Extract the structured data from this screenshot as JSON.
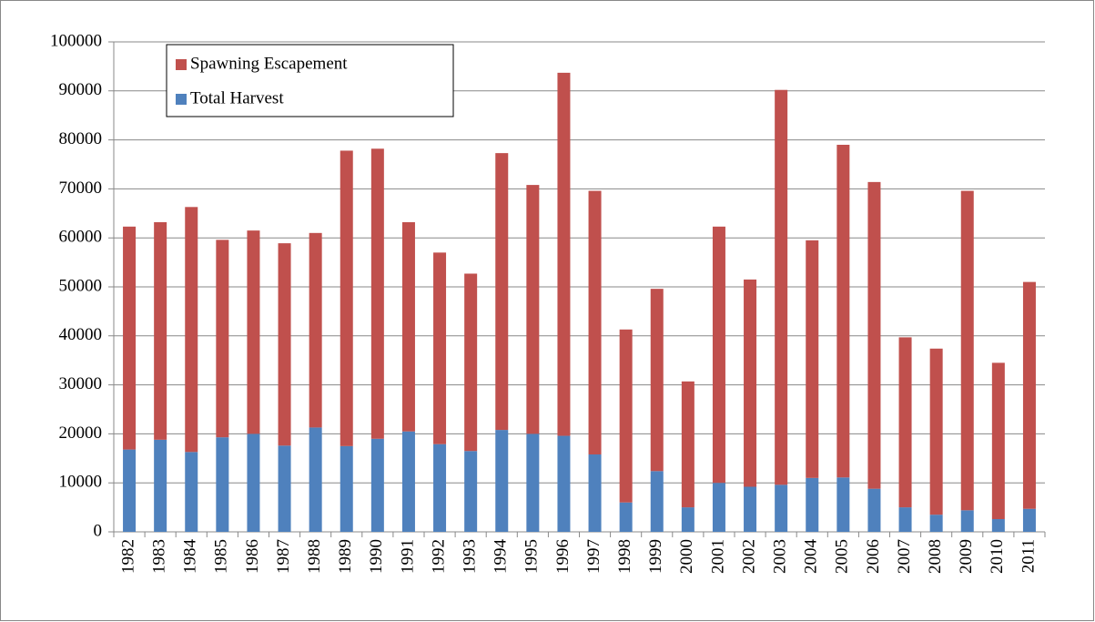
{
  "chart_data": {
    "type": "stacked_bar",
    "categories": [
      "1982",
      "1983",
      "1984",
      "1985",
      "1986",
      "1987",
      "1988",
      "1989",
      "1990",
      "1991",
      "1992",
      "1993",
      "1994",
      "1995",
      "1996",
      "1997",
      "1998",
      "1999",
      "2000",
      "2001",
      "2002",
      "2003",
      "2004",
      "2005",
      "2006",
      "2007",
      "2008",
      "2009",
      "2010",
      "2011"
    ],
    "series": [
      {
        "name": "Total Harvest",
        "color": "#4f81bd",
        "values": [
          16800,
          18800,
          16300,
          19300,
          20000,
          17600,
          21300,
          17500,
          19000,
          20500,
          17900,
          16500,
          20800,
          20000,
          19600,
          15800,
          6000,
          12400,
          5000,
          10000,
          9200,
          9600,
          11000,
          11100,
          8800,
          5000,
          3500,
          4400,
          2600,
          4700
        ]
      },
      {
        "name": "Spawning Escapement",
        "color": "#c0504d",
        "values": [
          45500,
          44400,
          50000,
          40300,
          41500,
          41300,
          39700,
          60300,
          59200,
          42700,
          39100,
          36200,
          56500,
          50800,
          74100,
          53800,
          35300,
          37200,
          25700,
          52300,
          42300,
          80600,
          48500,
          67900,
          62600,
          34700,
          33900,
          65200,
          31900,
          46300
        ]
      }
    ],
    "ylim": [
      0,
      100000
    ],
    "yticks": [
      0,
      10000,
      20000,
      30000,
      40000,
      50000,
      60000,
      70000,
      80000,
      90000,
      100000
    ],
    "grid": true,
    "legend": "top-left"
  }
}
